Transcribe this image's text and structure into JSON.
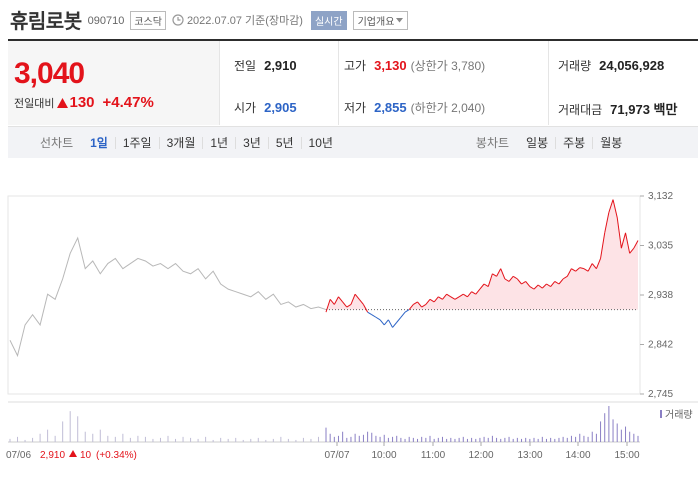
{
  "header": {
    "stock_name": "휴림로봇",
    "stock_code": "090710",
    "market": "코스닥",
    "date_text": "2022.07.07 기준(장마감)",
    "realtime_label": "실시간",
    "overview_label": "기업개요"
  },
  "price": {
    "current": "3,040",
    "change_label": "전일대비",
    "change_value": "130",
    "change_pct": "+4.47%"
  },
  "stats": {
    "prev_close_label": "전일",
    "prev_close": "2,910",
    "open_label": "시가",
    "open": "2,905",
    "high_label": "고가",
    "high": "3,130",
    "upper_limit": "(상한가 3,780)",
    "low_label": "저가",
    "low": "2,855",
    "lower_limit": "(하한가 2,040)",
    "volume_label": "거래량",
    "volume": "24,056,928",
    "amount_label": "거래대금",
    "amount": "71,973 백만"
  },
  "tabs": {
    "line_label": "선차트",
    "line_tabs": [
      "1일",
      "1주일",
      "3개월",
      "1년",
      "3년",
      "5년",
      "10년"
    ],
    "candle_label": "봉차트",
    "candle_tabs": [
      "일봉",
      "주봉",
      "월봉"
    ]
  },
  "chart_data": {
    "type": "line",
    "price_axis": [
      "3,132",
      "3,035",
      "2,938",
      "2,842",
      "2,745"
    ],
    "ylim": [
      2745,
      3132
    ],
    "baseline": 2910,
    "x_labels": [
      "07/07",
      "10:00",
      "11:00",
      "12:00",
      "13:00",
      "14:00",
      "15:00"
    ],
    "prev_day_label": "07/06",
    "prev_day_close": "2,910",
    "prev_day_change": "10",
    "prev_day_pct": "(+0.34%)",
    "volume_label": "거래량",
    "prev_day_series": [
      2850,
      2820,
      2880,
      2900,
      2880,
      2940,
      2930,
      2970,
      3020,
      3050,
      2990,
      3005,
      2980,
      3000,
      3010,
      2990,
      3000,
      3010,
      3005,
      2995,
      3000,
      2990,
      3000,
      2985,
      2980,
      2990,
      2970,
      2985,
      2960,
      2950,
      2945,
      2940,
      2935,
      2945,
      2930,
      2940,
      2920,
      2925,
      2915,
      2920,
      2912,
      2915,
      2910
    ],
    "today_series": [
      2905,
      2930,
      2920,
      2935,
      2925,
      2915,
      2920,
      2940,
      2930,
      2920,
      2905,
      2900,
      2895,
      2890,
      2880,
      2890,
      2875,
      2885,
      2895,
      2905,
      2910,
      2920,
      2925,
      2915,
      2920,
      2930,
      2925,
      2935,
      2930,
      2940,
      2935,
      2930,
      2935,
      2940,
      2935,
      2945,
      2940,
      2950,
      2960,
      2955,
      2980,
      2975,
      2990,
      2970,
      2965,
      2975,
      2970,
      2960,
      2965,
      2955,
      2950,
      2958,
      2952,
      2960,
      2955,
      2965,
      2960,
      2970,
      2975,
      2990,
      2985,
      2992,
      2990,
      2985,
      3000,
      2990,
      3010,
      3060,
      3100,
      3125,
      3090,
      3030,
      3060,
      3020,
      3030,
      3045
    ],
    "prev_day_volume": [
      3,
      5,
      2,
      4,
      8,
      12,
      6,
      20,
      30,
      25,
      10,
      8,
      12,
      6,
      5,
      8,
      4,
      6,
      5,
      3,
      4,
      6,
      3,
      5,
      4,
      3,
      5,
      2,
      4,
      3,
      4,
      2,
      3,
      4,
      2,
      3,
      5,
      3,
      2,
      4,
      3,
      5,
      6
    ],
    "today_volume": [
      14,
      8,
      5,
      6,
      10,
      4,
      5,
      8,
      6,
      7,
      10,
      9,
      6,
      5,
      7,
      4,
      5,
      6,
      4,
      3,
      5,
      4,
      3,
      5,
      4,
      6,
      3,
      4,
      5,
      3,
      4,
      3,
      4,
      5,
      3,
      4,
      3,
      4,
      5,
      4,
      6,
      4,
      3,
      4,
      5,
      3,
      4,
      3,
      4,
      3,
      4,
      3,
      5,
      3,
      4,
      3,
      4,
      5,
      4,
      6,
      5,
      8,
      6,
      5,
      10,
      8,
      20,
      28,
      35,
      22,
      18,
      12,
      15,
      10,
      8,
      6
    ],
    "colors": {
      "up": "#e3131b",
      "down": "#2d64c6",
      "prev": "#b8b8b8",
      "fill": "#fde3e6",
      "volume": "#8a7fc4"
    }
  }
}
